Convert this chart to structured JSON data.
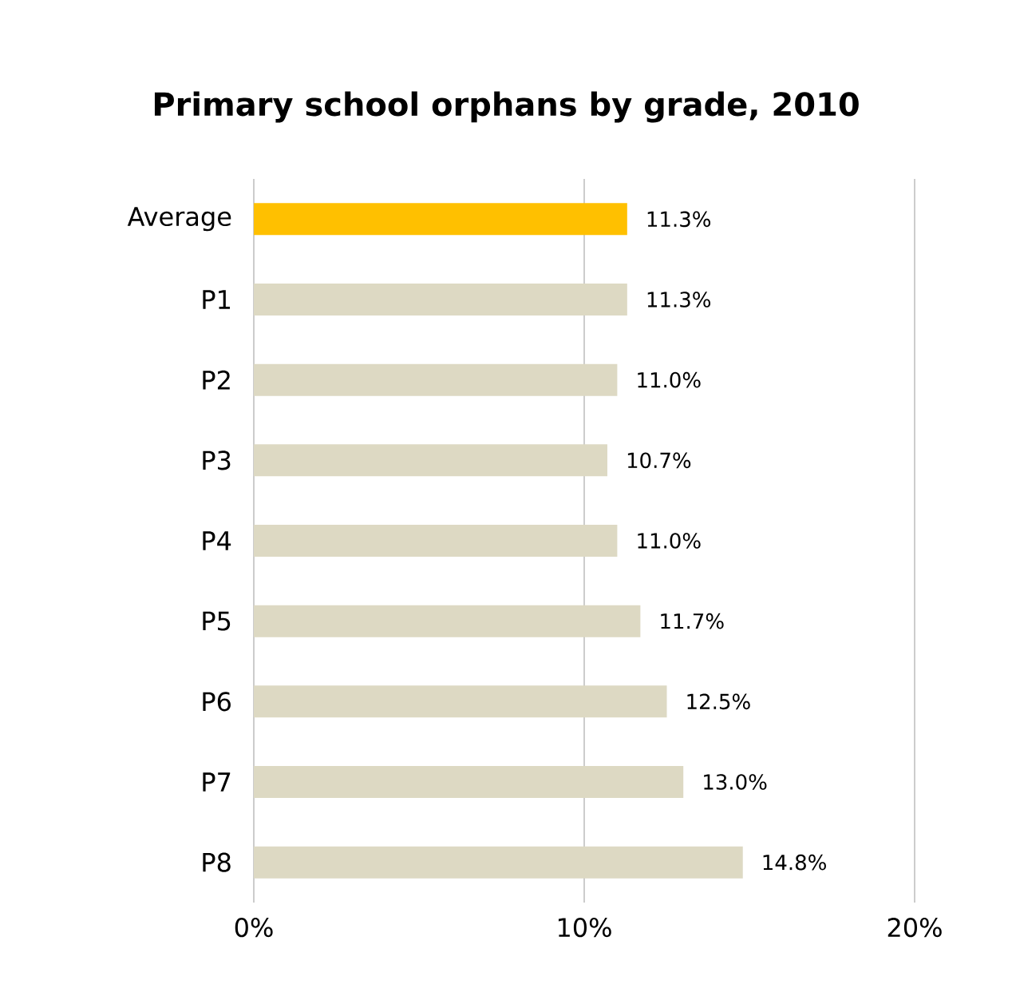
{
  "chart_data": {
    "type": "bar",
    "orientation": "horizontal",
    "title": "Primary school orphans by grade, 2010",
    "categories": [
      "Average",
      "P1",
      "P2",
      "P3",
      "P4",
      "P5",
      "P6",
      "P7",
      "P8"
    ],
    "values": [
      11.3,
      11.3,
      11.0,
      10.7,
      11.0,
      11.7,
      12.5,
      13.0,
      14.8
    ],
    "value_labels": [
      "11.3%",
      "11.3%",
      "11.0%",
      "10.7%",
      "11.0%",
      "11.7%",
      "12.5%",
      "13.0%",
      "14.8%"
    ],
    "colors": [
      "#ffc000",
      "#ddd9c3",
      "#ddd9c3",
      "#ddd9c3",
      "#ddd9c3",
      "#ddd9c3",
      "#ddd9c3",
      "#ddd9c3",
      "#ddd9c3"
    ],
    "xlim": [
      0,
      20
    ],
    "xticks": [
      {
        "value": 0,
        "label": "0%"
      },
      {
        "value": 10,
        "label": "10%"
      },
      {
        "value": 20,
        "label": "20%"
      }
    ],
    "grid": "x"
  }
}
